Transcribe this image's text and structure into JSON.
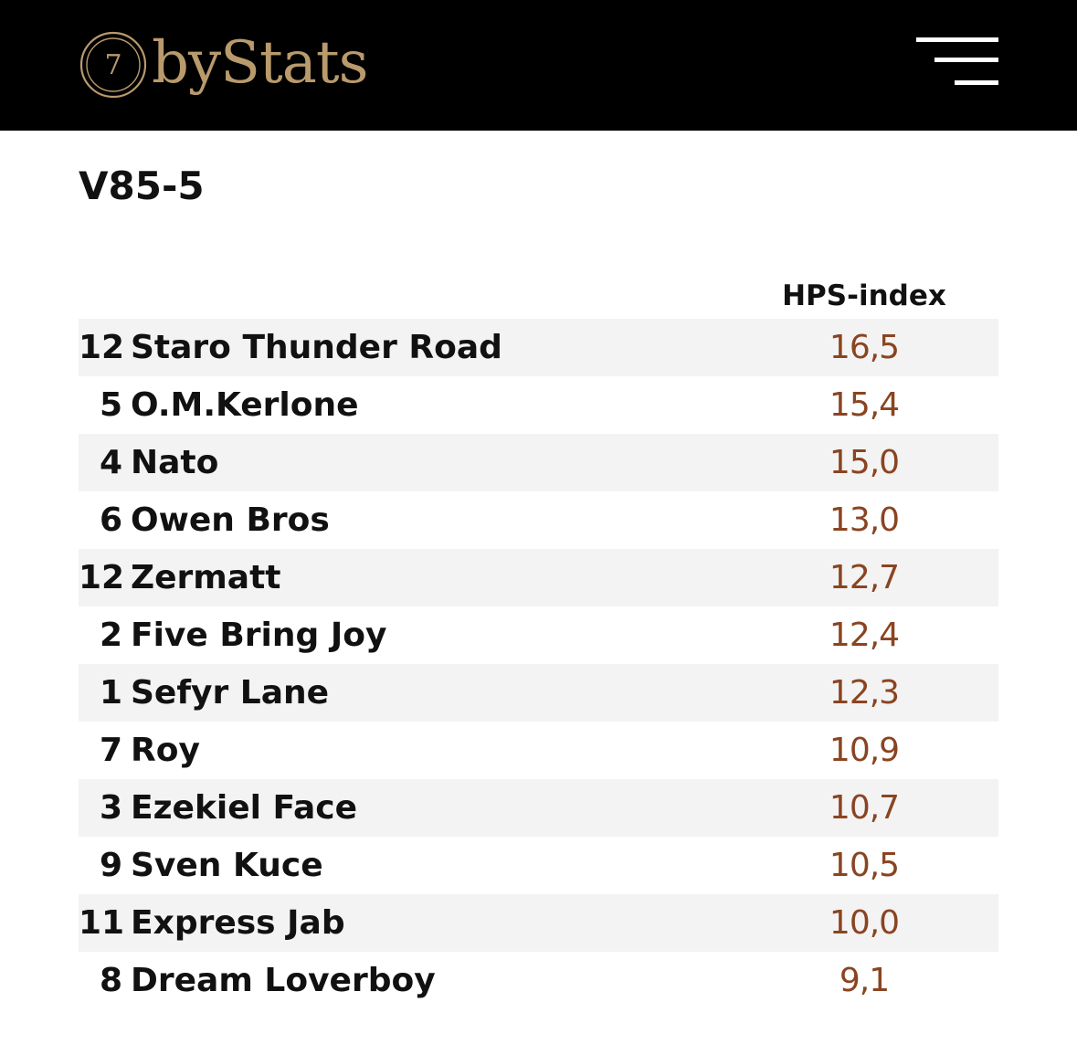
{
  "header": {
    "logo_number": "7",
    "logo_text": "byStats",
    "brand_color": "#b99a6c",
    "menu_icon": "hamburger-menu-icon"
  },
  "race": {
    "title": "V85-5"
  },
  "table": {
    "column_header": "HPS-index",
    "score_color": "#8a4421",
    "rows": [
      {
        "number": "12",
        "name": "Staro Thunder Road",
        "score": "16,5"
      },
      {
        "number": "5",
        "name": "O.M.Kerlone",
        "score": "15,4"
      },
      {
        "number": "4",
        "name": "Nato",
        "score": "15,0"
      },
      {
        "number": "6",
        "name": "Owen Bros",
        "score": "13,0"
      },
      {
        "number": "12",
        "name": "Zermatt",
        "score": "12,7"
      },
      {
        "number": "2",
        "name": "Five Bring Joy",
        "score": "12,4"
      },
      {
        "number": "1",
        "name": "Sefyr Lane",
        "score": "12,3"
      },
      {
        "number": "7",
        "name": "Roy",
        "score": "10,9"
      },
      {
        "number": "3",
        "name": "Ezekiel Face",
        "score": "10,7"
      },
      {
        "number": "9",
        "name": "Sven Kuce",
        "score": "10,5"
      },
      {
        "number": "11",
        "name": "Express Jab",
        "score": "10,0"
      },
      {
        "number": "8",
        "name": "Dream Loverboy",
        "score": "9,1"
      }
    ]
  }
}
